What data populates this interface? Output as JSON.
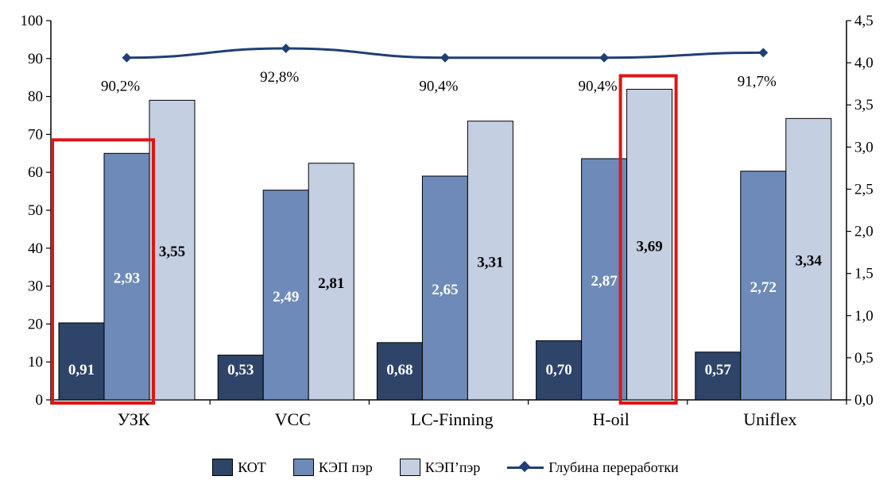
{
  "chart_data": {
    "type": "bar",
    "categories": [
      "УЗК",
      "VCC",
      "LC-Finning",
      "H-oil",
      "Uniflex"
    ],
    "series": [
      {
        "name": "КОТ",
        "values": [
          20.3,
          11.8,
          15.1,
          15.6,
          12.6
        ],
        "labels": [
          "0,91",
          "0,53",
          "0,68",
          "0,70",
          "0,57"
        ],
        "color": "#2e4468",
        "label_color": "#ffffff"
      },
      {
        "name": "КЭП пэр",
        "values": [
          65.0,
          55.3,
          59.0,
          63.6,
          60.3
        ],
        "labels": [
          "2,93",
          "2,49",
          "2,65",
          "2,87",
          "2,72"
        ],
        "color": "#6d8ab8",
        "label_color": "#ffffff"
      },
      {
        "name": "КЭП’пэр",
        "values": [
          79.0,
          62.4,
          73.5,
          81.9,
          74.2
        ],
        "labels": [
          "3,55",
          "2,81",
          "3,31",
          "3,69",
          "3,34"
        ],
        "color": "#c5cfe2",
        "label_color": "#000000"
      }
    ],
    "line_series": {
      "name": "Глубина переработки",
      "values": [
        4.06,
        4.17,
        4.06,
        4.06,
        4.12
      ],
      "labels": [
        "90,2%",
        "92,8%",
        "90,4%",
        "90,4%",
        "91,7%"
      ],
      "color": "#1f3f75",
      "axis": "right"
    },
    "ylim": [
      0,
      100
    ],
    "y_ticks": [
      "0",
      "10",
      "20",
      "30",
      "40",
      "50",
      "60",
      "70",
      "80",
      "90",
      "100"
    ],
    "y2lim": [
      0,
      4.5
    ],
    "y2_ticks": [
      "0,0",
      "0,5",
      "1,0",
      "1,5",
      "2,0",
      "2,5",
      "3,0",
      "3,5",
      "4,0",
      "4,5"
    ],
    "highlights": [
      {
        "category": "УЗК",
        "series": [
          "КОТ",
          "КЭП пэр"
        ],
        "color": "#e01414"
      },
      {
        "category": "H-oil",
        "series": [
          "КЭП’пэр"
        ],
        "color": "#e01414"
      }
    ],
    "legend_position": "bottom",
    "grid": false
  }
}
